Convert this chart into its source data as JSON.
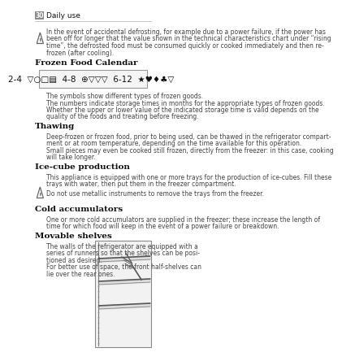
{
  "page_num": "30",
  "page_header": "Daily use",
  "bg_color": "#ffffff",
  "text_color": "#444444",
  "heading_color": "#111111",
  "header_bar_color": "#888888",
  "warning1_lines": [
    "In the event of accidental defrosting, for example due to a power failure, if the power has",
    "been off for longer that the value shown in the technical characteristics chart under “rising",
    "time”, the defrosted food must be consumed quickly or cooked immediately and then re-",
    "frozen (after cooling)."
  ],
  "section1_title": "Frozen Food Calendar",
  "cal_symbols": "2-4  ▽○□▤■  4-8  ⊕ ▽ ▽ ▽  6-12  ★ ♥ ♦ ♣ ▽",
  "cal_text": [
    "The symbols show different types of frozen goods.",
    "The numbers indicate storage times in months for the appropriate types of frozen goods.",
    "Whether the upper or lower value of the indicated storage time is valid depends on the",
    "quality of the foods and treating before freezing."
  ],
  "section2_title": "Thawing",
  "thaw_text": [
    "Deep-frozen or frozen food, prior to being used, can be thawed in the refrigerator compart-",
    "ment or at room temperature, depending on the time available for this operation.",
    "Small pieces may even be cooked still frozen, directly from the freezer: in this case, cooking",
    "will take longer."
  ],
  "section3_title": "Ice-cube production",
  "ice_text": [
    "This appliance is equipped with one or more trays for the production of ice-cubes. Fill these",
    "trays with water, then put them in the freezer compartment."
  ],
  "warning2_text": "Do not use metallic instruments to remove the trays from the freezer.",
  "section4_title": "Cold accumulators",
  "cold_text": [
    "One or more cold accumulators are supplied in the freezer; these increase the length of",
    "time for which food will keep in the event of a power failure or breakdown."
  ],
  "section5_title": "Movable shelves",
  "shelves_text": [
    "The walls of the refrigerator are equipped with a",
    "series of runners so that the shelves can be posi-",
    "tioned as desired.",
    "For better use of space, the front half-shelves can",
    "lie over the rear ones."
  ]
}
